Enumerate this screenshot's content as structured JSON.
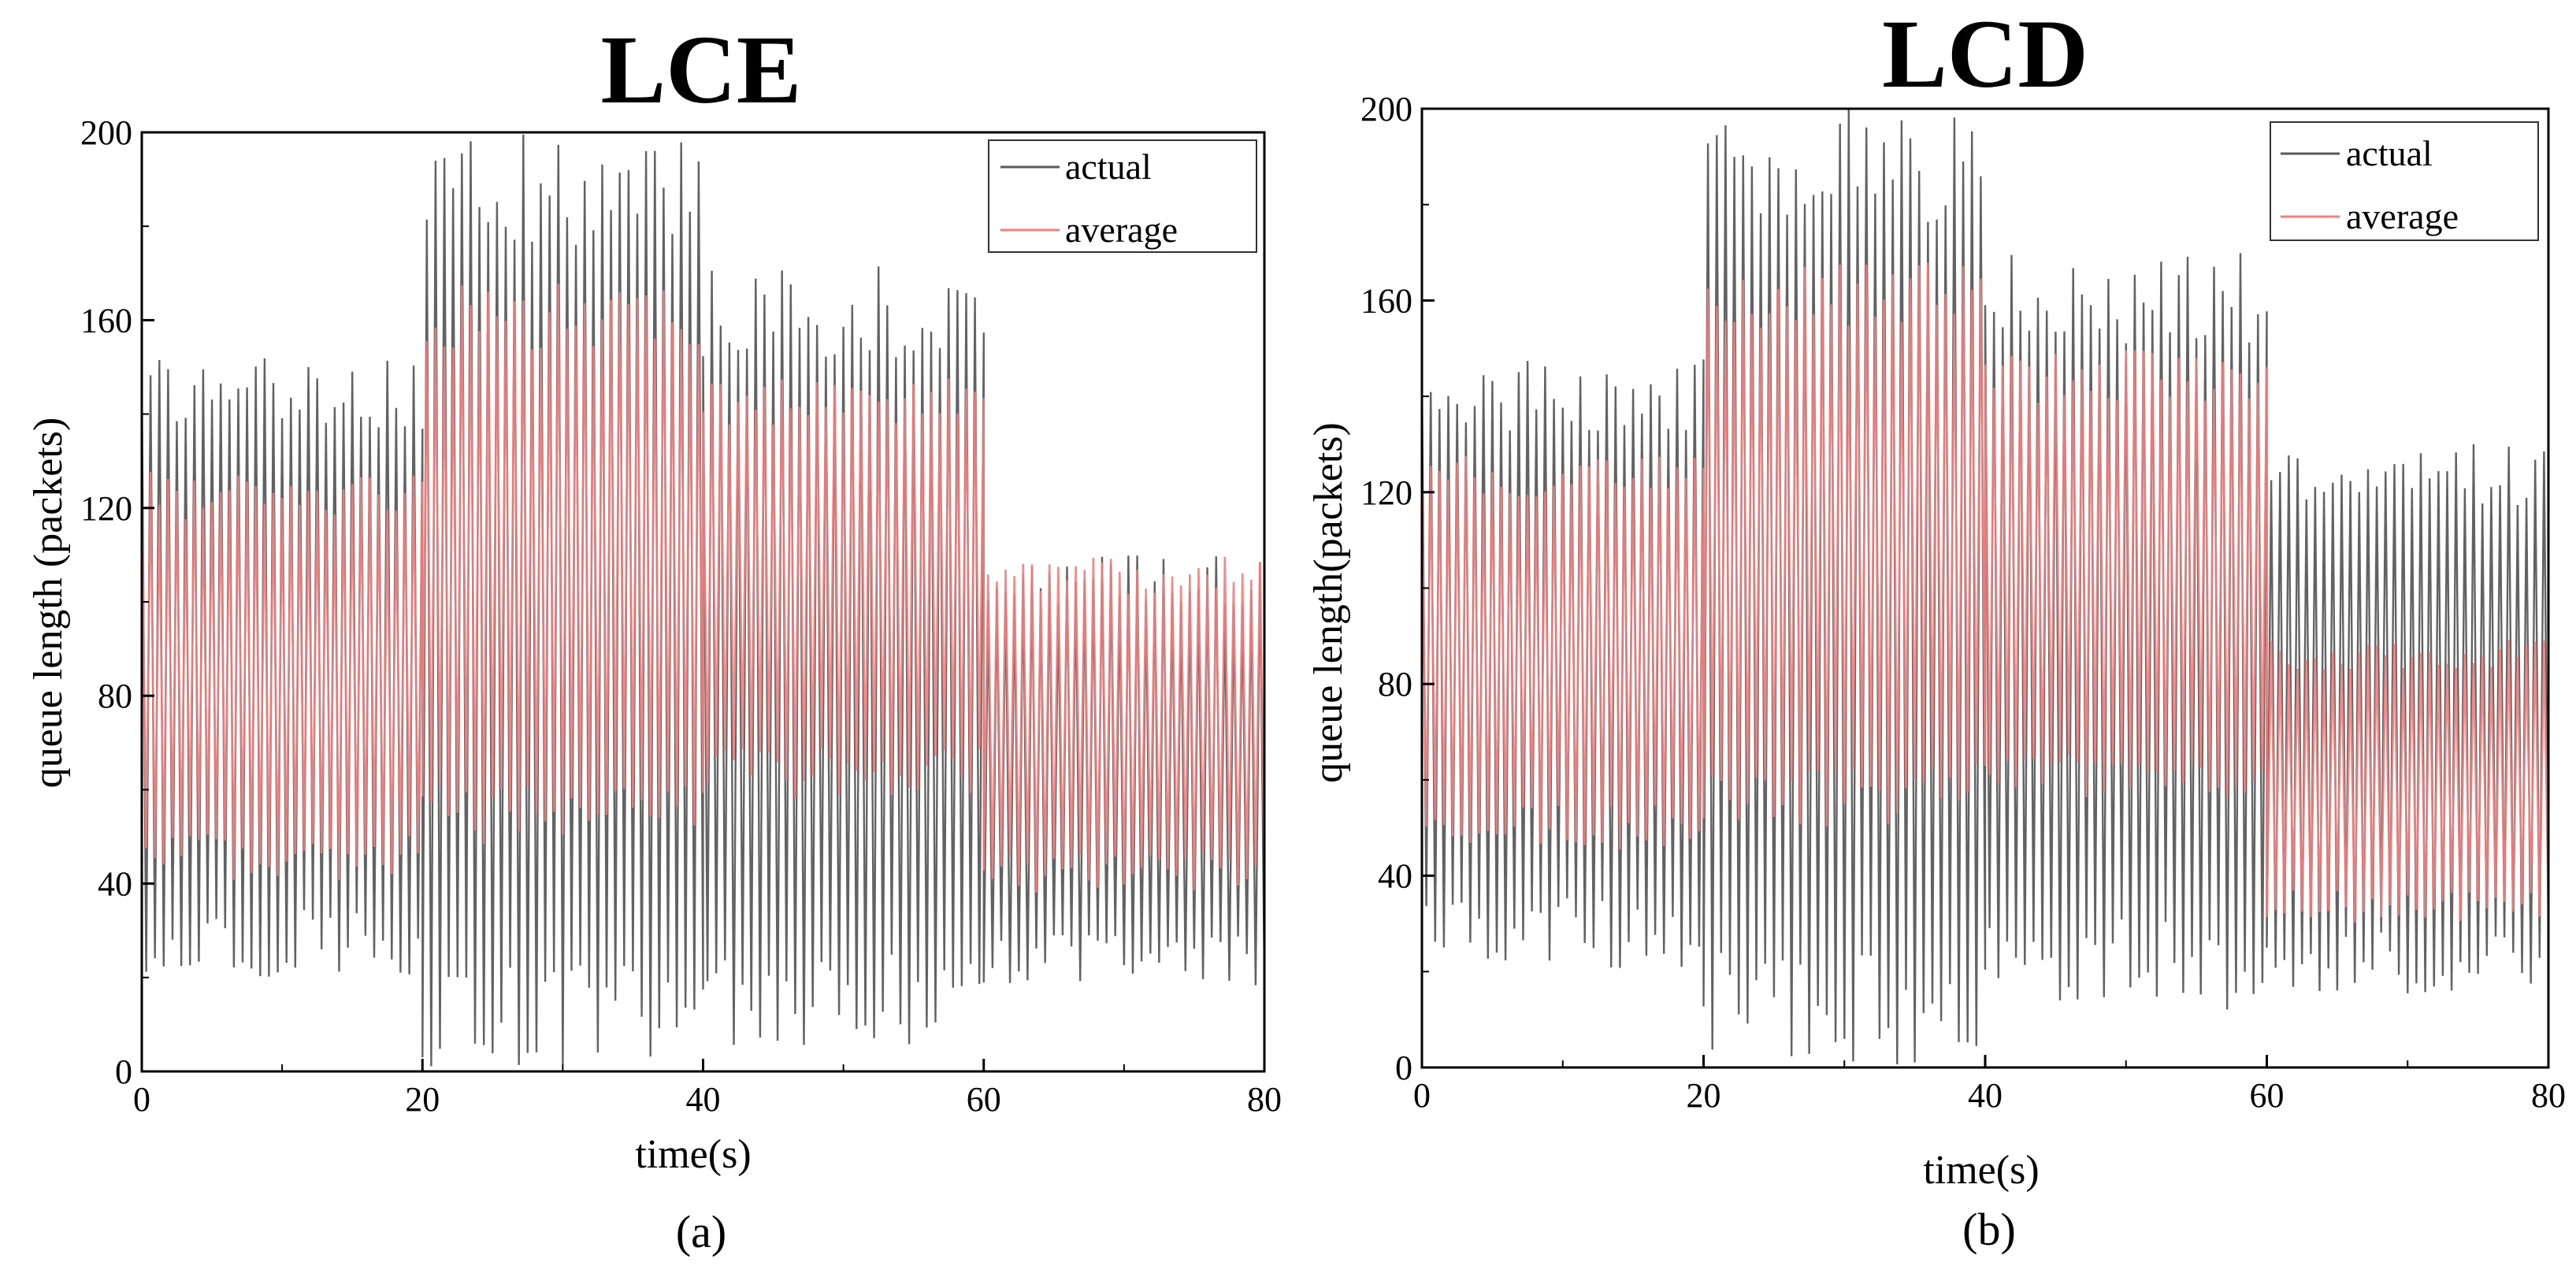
{
  "colors": {
    "actual": "#5a5a5a",
    "average": "#f08080",
    "axis": "#000000"
  },
  "chart_data": [
    {
      "type": "line",
      "title": "LCE",
      "caption": "(a)",
      "xlabel": "time(s)",
      "ylabel": "queue length (packets)",
      "xlim": [
        0,
        80
      ],
      "ylim": [
        0,
        200
      ],
      "xticks": [
        0,
        20,
        40,
        60,
        80
      ],
      "yticks": [
        0,
        40,
        80,
        120,
        160,
        200
      ],
      "legend": {
        "position": "top-right",
        "entries": [
          "actual",
          "average"
        ]
      },
      "series": [
        {
          "name": "actual",
          "description": "rapidly oscillating queue length",
          "segments": [
            {
              "t": [
                0,
                20
              ],
              "low": 20,
              "high": 152
            },
            {
              "t": [
                20,
                40
              ],
              "low": 0,
              "high": 200
            },
            {
              "t": [
                40,
                60
              ],
              "low": 5,
              "high": 172
            },
            {
              "t": [
                60,
                80
              ],
              "low": 18,
              "high": 110
            }
          ]
        },
        {
          "name": "average",
          "description": "averaged queue length",
          "segments": [
            {
              "t": [
                0,
                20
              ],
              "low": 40,
              "high": 128
            },
            {
              "t": [
                20,
                40
              ],
              "low": 48,
              "high": 168
            },
            {
              "t": [
                40,
                60
              ],
              "low": 58,
              "high": 148
            },
            {
              "t": [
                60,
                80
              ],
              "low": 38,
              "high": 110
            }
          ]
        }
      ]
    },
    {
      "type": "line",
      "title": "LCD",
      "caption": "(b)",
      "xlabel": "time(s)",
      "ylabel": "queue length(packets)",
      "xlim": [
        0,
        80
      ],
      "ylim": [
        0,
        200
      ],
      "xticks": [
        0,
        20,
        40,
        60,
        80
      ],
      "yticks": [
        0,
        40,
        80,
        120,
        160,
        200
      ],
      "legend": {
        "position": "top-right",
        "entries": [
          "actual",
          "average"
        ]
      },
      "series": [
        {
          "name": "actual",
          "description": "rapidly oscillating queue length",
          "segments": [
            {
              "t": [
                0,
                20
              ],
              "low": 20,
              "high": 148
            },
            {
              "t": [
                20,
                40
              ],
              "low": 0,
              "high": 200
            },
            {
              "t": [
                40,
                60
              ],
              "low": 12,
              "high": 170
            },
            {
              "t": [
                60,
                80
              ],
              "low": 15,
              "high": 130
            }
          ]
        },
        {
          "name": "average",
          "description": "averaged queue length",
          "segments": [
            {
              "t": [
                0,
                20
              ],
              "low": 45,
              "high": 128
            },
            {
              "t": [
                20,
                40
              ],
              "low": 50,
              "high": 168
            },
            {
              "t": [
                40,
                60
              ],
              "low": 55,
              "high": 150
            },
            {
              "t": [
                60,
                80
              ],
              "low": 30,
              "high": 90
            }
          ]
        }
      ]
    }
  ]
}
